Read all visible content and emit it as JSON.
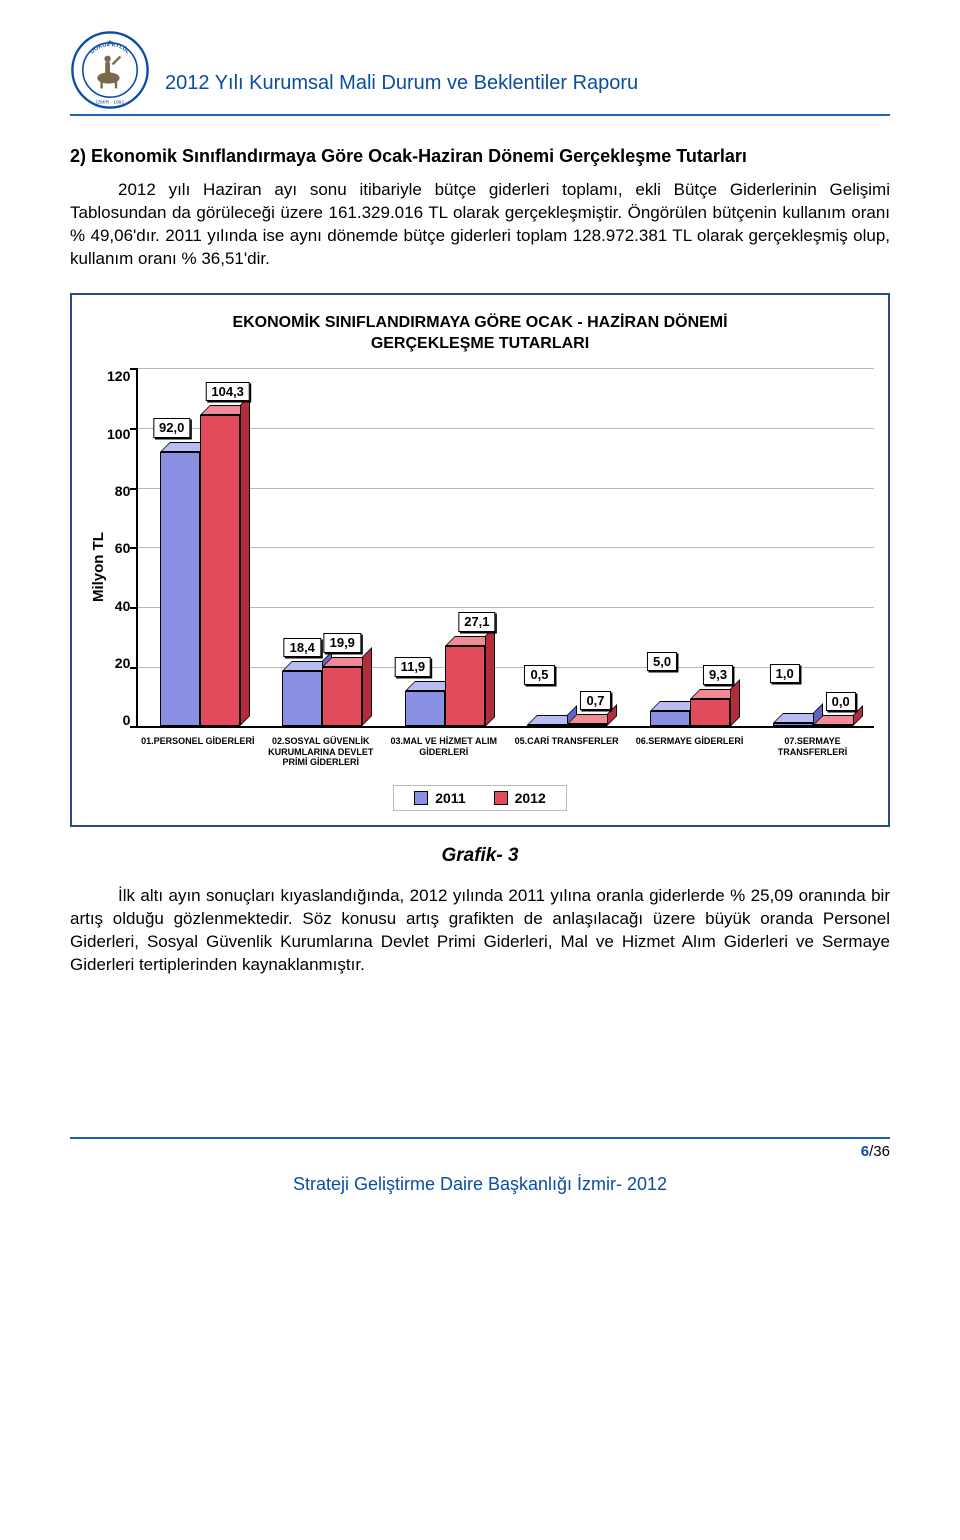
{
  "header": {
    "title": "2012 Yılı Kurumsal Mali Durum ve Beklentiler Raporu",
    "logo_text_top": "DEÜZ EYLÜL",
    "logo_text_bottom": "İZMİR - 1982",
    "logo_ring_color": "#0b4da2",
    "logo_figure_color": "#7b6a4a"
  },
  "section": {
    "heading": "2) Ekonomik Sınıflandırmaya Göre Ocak-Haziran Dönemi Gerçekleşme Tutarları",
    "p1": "2012 yılı Haziran ayı sonu itibariyle bütçe giderleri toplamı, ekli Bütçe Giderlerinin Gelişimi Tablosundan da görüleceği üzere 161.329.016 TL olarak gerçekleşmiştir. Öngörülen bütçenin kullanım oranı % 49,06'dır. 2011 yılında ise aynı dönemde bütçe giderleri toplam 128.972.381 TL olarak gerçekleşmiş olup, kullanım oranı % 36,51'dir.",
    "p2": "İlk altı ayın sonuçları kıyaslandığında, 2012 yılında 2011 yılına oranla giderlerde % 25,09 oranında bir artış olduğu gözlenmektedir. Söz konusu artış grafikten de anlaşılacağı üzere büyük oranda Personel Giderleri, Sosyal Güvenlik Kurumlarına Devlet Primi Giderleri, Mal ve Hizmet Alım Giderleri ve Sermaye Giderleri tertiplerinden kaynaklanmıştır."
  },
  "chart": {
    "title_l1": "EKONOMİK SINIFLANDIRMAYA GÖRE OCAK - HAZİRAN DÖNEMİ",
    "title_l2": "GERÇEKLEŞME TUTARLARI",
    "ylabel": "Milyon TL",
    "ymax": 120,
    "ytick_step": 20,
    "yticks": [
      "120",
      "100",
      "80",
      "60",
      "40",
      "20",
      "0"
    ],
    "categories": [
      "01.PERSONEL GİDERLERİ",
      "02.SOSYAL GÜVENLİK KURUMLARINA DEVLET PRİMİ GİDERLERİ",
      "03.MAL VE HİZMET ALIM GİDERLERİ",
      "05.CARİ TRANSFERLER",
      "06.SERMAYE GİDERLERİ",
      "07.SERMAYE TRANSFERLERİ"
    ],
    "series": [
      {
        "name": "2011",
        "color_front": "#8a90e2",
        "color_top": "#b7bcf2",
        "color_side": "#5e64c8",
        "values": [
          92.0,
          18.4,
          11.9,
          0.5,
          5.0,
          1.0
        ]
      },
      {
        "name": "2012",
        "color_front": "#e24b5b",
        "color_top": "#f08a96",
        "color_side": "#b32c3c",
        "values": [
          104.3,
          19.9,
          27.1,
          0.7,
          9.3,
          0.0
        ]
      }
    ],
    "value_labels": [
      [
        "92,0",
        "104,3"
      ],
      [
        "18,4",
        "19,9"
      ],
      [
        "11,9",
        "27,1"
      ],
      [
        "0,5",
        "0,7"
      ],
      [
        "5,0",
        "9,3"
      ],
      [
        "1,0",
        "0,0"
      ]
    ],
    "caption": "Grafik- 3",
    "background_color": "#ffffff",
    "border_color": "#2a4a8a",
    "grid_color": "#b8b8b8"
  },
  "legend": {
    "items": [
      "2011",
      "2012"
    ]
  },
  "footer": {
    "page_current": "6",
    "page_total": "/36",
    "org": "Strateji Geliştirme Daire Başkanlığı İzmir- 2012"
  }
}
